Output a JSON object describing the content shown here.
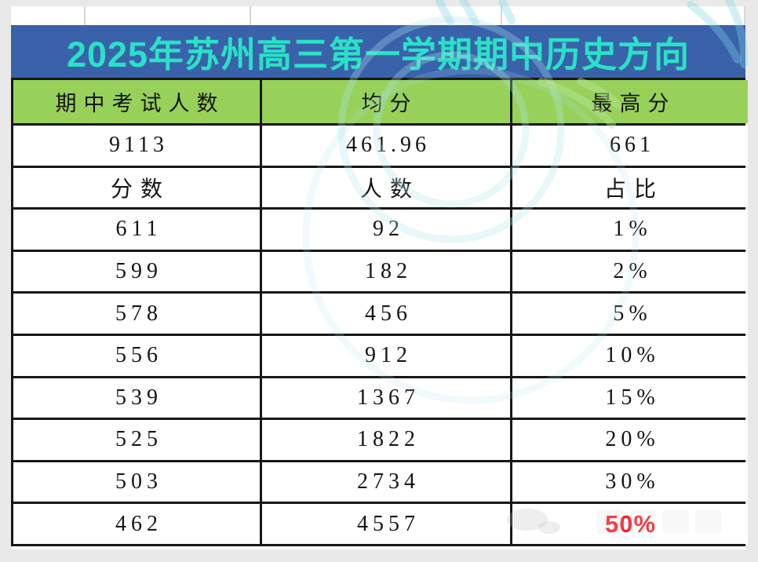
{
  "title": "2025年苏州高三第一学期期中历史方向",
  "colors": {
    "title_bg": "#3a62aa",
    "title_text": "#29e2c5",
    "header_bg": "#97d15a",
    "border": "#171717",
    "text": "#141414",
    "highlight_red": "#fb1e28",
    "page_bg": "#e9e9e9",
    "watermark_cyan": "#aee3f0"
  },
  "table": {
    "header": [
      "期中考试人数",
      "均分",
      "最高分"
    ],
    "rows": [
      {
        "cells": [
          "9113",
          "461.96",
          "661"
        ],
        "type": "summary"
      },
      {
        "cells": [
          "分数",
          "人数",
          "占比"
        ],
        "type": "subheader"
      },
      {
        "cells": [
          "611",
          "92",
          "1%"
        ],
        "type": "score"
      },
      {
        "cells": [
          "599",
          "182",
          "2%"
        ],
        "type": "score"
      },
      {
        "cells": [
          "578",
          "456",
          "5%"
        ],
        "type": "score"
      },
      {
        "cells": [
          "556",
          "912",
          "10%"
        ],
        "type": "score"
      },
      {
        "cells": [
          "539",
          "1367",
          "15%"
        ],
        "type": "score"
      },
      {
        "cells": [
          "525",
          "1822",
          "20%"
        ],
        "type": "score"
      },
      {
        "cells": [
          "503",
          "2734",
          "30%"
        ],
        "type": "score"
      },
      {
        "cells": [
          "462",
          "4557",
          "50%"
        ],
        "type": "score",
        "highlight_cell": 2
      }
    ]
  },
  "chart_data": {
    "type": "table",
    "title": "2025年苏州高三第一学期期中历史方向",
    "summary_columns": [
      "期中考试人数",
      "均分",
      "最高分"
    ],
    "summary_values": [
      9113,
      461.96,
      661
    ],
    "distribution_columns": [
      "分数",
      "人数",
      "占比"
    ],
    "distribution": [
      {
        "score": 611,
        "count": 92,
        "percent": "1%"
      },
      {
        "score": 599,
        "count": 182,
        "percent": "2%"
      },
      {
        "score": 578,
        "count": 456,
        "percent": "5%"
      },
      {
        "score": 556,
        "count": 912,
        "percent": "10%"
      },
      {
        "score": 539,
        "count": 1367,
        "percent": "15%"
      },
      {
        "score": 525,
        "count": 1822,
        "percent": "20%"
      },
      {
        "score": 503,
        "count": 2734,
        "percent": "30%"
      },
      {
        "score": 462,
        "count": 4557,
        "percent": "50%"
      }
    ],
    "notes": "50% cell rendered in red bold"
  }
}
